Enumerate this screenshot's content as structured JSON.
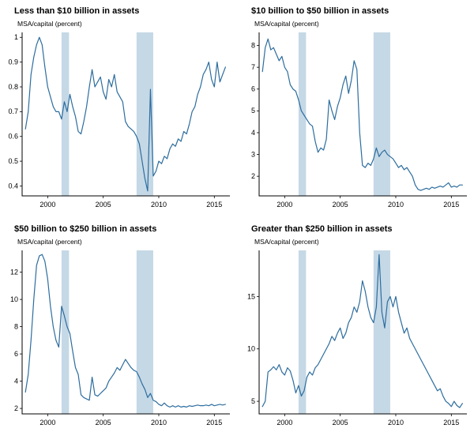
{
  "colors": {
    "line": "#2d6d9e",
    "band": "#c5d8e6",
    "axis": "#000000"
  },
  "chart_data": [
    {
      "type": "line",
      "title": "Less than $10 billion in assets",
      "inner_label": "MSA/capital (percent)",
      "x_start": 1998,
      "x_step": 0.25,
      "xlim": [
        1997.7,
        2016.4
      ],
      "ylim": [
        0.36,
        1.02
      ],
      "xticks": [
        2000,
        2005,
        2010,
        2015
      ],
      "yticks": [
        0.4,
        0.5,
        0.6,
        0.7,
        0.8,
        0.9,
        1
      ],
      "ytick_labels": [
        "0.4",
        "0.5",
        "0.6",
        "0.7",
        "0.8",
        "0.9",
        "1"
      ],
      "recession_bands": [
        [
          2001.25,
          2001.92
        ],
        [
          2008.0,
          2009.5
        ]
      ],
      "values": [
        0.63,
        0.7,
        0.85,
        0.92,
        0.97,
        1.0,
        0.97,
        0.88,
        0.8,
        0.76,
        0.72,
        0.7,
        0.7,
        0.67,
        0.74,
        0.7,
        0.77,
        0.72,
        0.68,
        0.62,
        0.61,
        0.66,
        0.72,
        0.8,
        0.87,
        0.8,
        0.82,
        0.84,
        0.78,
        0.75,
        0.83,
        0.8,
        0.85,
        0.78,
        0.76,
        0.74,
        0.66,
        0.64,
        0.63,
        0.62,
        0.6,
        0.57,
        0.5,
        0.43,
        0.38,
        0.79,
        0.44,
        0.46,
        0.5,
        0.49,
        0.52,
        0.51,
        0.55,
        0.57,
        0.56,
        0.59,
        0.58,
        0.62,
        0.61,
        0.65,
        0.7,
        0.72,
        0.77,
        0.8,
        0.85,
        0.87,
        0.9,
        0.83,
        0.8,
        0.9,
        0.82,
        0.85,
        0.88
      ]
    },
    {
      "type": "line",
      "title": "$10 billion to $50 billion in assets",
      "inner_label": "MSA/capital (percent)",
      "x_start": 1998,
      "x_step": 0.25,
      "xlim": [
        1997.7,
        2016.4
      ],
      "ylim": [
        1.1,
        8.6
      ],
      "xticks": [
        2000,
        2005,
        2010,
        2015
      ],
      "yticks": [
        2,
        3,
        4,
        5,
        6,
        7,
        8
      ],
      "ytick_labels": [
        "2",
        "3",
        "4",
        "5",
        "6",
        "7",
        "8"
      ],
      "recession_bands": [
        [
          2001.25,
          2001.92
        ],
        [
          2008.0,
          2009.5
        ]
      ],
      "values": [
        6.8,
        7.9,
        8.3,
        7.8,
        7.9,
        7.6,
        7.3,
        7.5,
        7.0,
        6.8,
        6.2,
        6.0,
        5.9,
        5.5,
        5.0,
        4.8,
        4.6,
        4.4,
        4.3,
        3.6,
        3.1,
        3.3,
        3.2,
        3.7,
        5.5,
        5.0,
        4.6,
        5.2,
        5.6,
        6.2,
        6.6,
        5.8,
        6.4,
        7.3,
        6.9,
        4.0,
        2.5,
        2.4,
        2.6,
        2.5,
        2.8,
        3.3,
        2.9,
        3.1,
        3.2,
        3.0,
        2.9,
        2.8,
        2.6,
        2.4,
        2.5,
        2.3,
        2.4,
        2.2,
        2.0,
        1.6,
        1.4,
        1.35,
        1.4,
        1.45,
        1.4,
        1.5,
        1.45,
        1.5,
        1.55,
        1.5,
        1.6,
        1.7,
        1.5,
        1.55,
        1.5,
        1.6,
        1.6
      ]
    },
    {
      "type": "line",
      "title": "$50 billion to $250 billion in assets",
      "inner_label": "MSA/capital (percent)",
      "x_start": 1998,
      "x_step": 0.25,
      "xlim": [
        1997.7,
        2016.4
      ],
      "ylim": [
        1.6,
        13.6
      ],
      "xticks": [
        2000,
        2005,
        2010,
        2015
      ],
      "yticks": [
        2,
        4,
        6,
        8,
        10,
        12
      ],
      "ytick_labels": [
        "2",
        "4",
        "6",
        "8",
        "10",
        "12"
      ],
      "recession_bands": [
        [
          2001.25,
          2001.92
        ],
        [
          2008.0,
          2009.5
        ]
      ],
      "values": [
        3.2,
        4.5,
        7.0,
        10.0,
        12.5,
        13.2,
        13.3,
        12.8,
        11.5,
        9.5,
        8.0,
        7.0,
        6.5,
        9.5,
        8.8,
        8.0,
        7.5,
        6.2,
        5.0,
        4.5,
        3.0,
        2.8,
        2.7,
        2.6,
        4.3,
        3.0,
        2.9,
        3.1,
        3.3,
        3.5,
        4.0,
        4.3,
        4.6,
        5.0,
        4.8,
        5.2,
        5.6,
        5.3,
        5.0,
        4.8,
        4.7,
        4.3,
        3.8,
        3.4,
        2.8,
        3.1,
        2.6,
        2.5,
        2.3,
        2.2,
        2.4,
        2.2,
        2.1,
        2.2,
        2.1,
        2.2,
        2.1,
        2.15,
        2.1,
        2.2,
        2.15,
        2.2,
        2.25,
        2.2,
        2.2,
        2.25,
        2.2,
        2.3,
        2.2,
        2.25,
        2.3,
        2.25,
        2.3
      ]
    },
    {
      "type": "line",
      "title": "Greater than $250 billion in assets",
      "inner_label": "MSA/capital (percent)",
      "x_start": 1998,
      "x_step": 0.25,
      "xlim": [
        1997.7,
        2016.4
      ],
      "ylim": [
        3.8,
        19.4
      ],
      "xticks": [
        2000,
        2005,
        2010,
        2015
      ],
      "yticks": [
        5,
        10,
        15
      ],
      "ytick_labels": [
        "5",
        "10",
        "15"
      ],
      "recession_bands": [
        [
          2001.25,
          2001.92
        ],
        [
          2008.0,
          2009.5
        ]
      ],
      "values": [
        4.5,
        5.0,
        7.8,
        8.0,
        8.3,
        8.0,
        8.5,
        7.8,
        7.5,
        8.2,
        7.9,
        7.0,
        5.8,
        6.5,
        5.5,
        6.0,
        7.3,
        7.8,
        7.5,
        8.2,
        8.5,
        9.0,
        9.5,
        10.0,
        10.5,
        11.2,
        10.8,
        11.5,
        12.0,
        11.0,
        11.5,
        12.5,
        13.0,
        14.0,
        13.5,
        14.5,
        16.5,
        15.5,
        14.0,
        13.0,
        12.5,
        14.0,
        19.0,
        13.5,
        12.0,
        14.5,
        15.0,
        14.0,
        15.0,
        13.5,
        12.5,
        11.5,
        12.0,
        11.0,
        10.5,
        10.0,
        9.5,
        9.0,
        8.5,
        8.0,
        7.5,
        7.0,
        6.5,
        6.0,
        6.2,
        5.5,
        5.0,
        4.8,
        4.5,
        5.0,
        4.6,
        4.4,
        4.8
      ]
    }
  ]
}
